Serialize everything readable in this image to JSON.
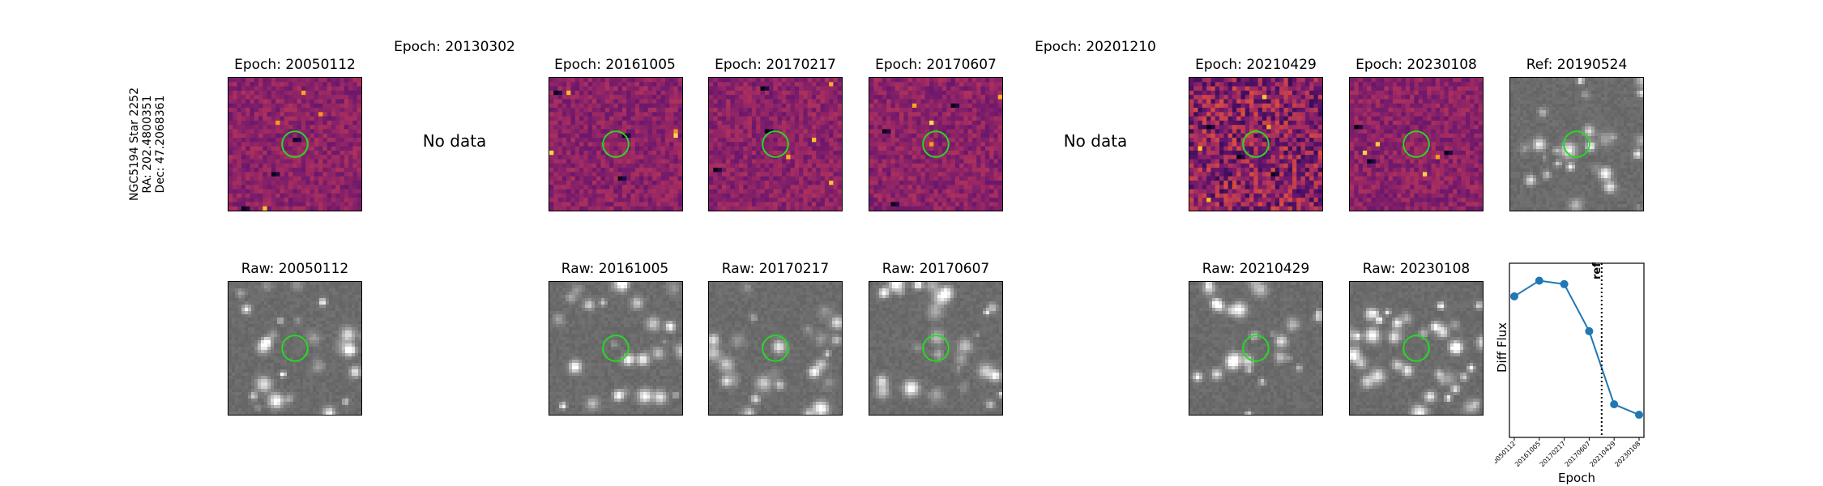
{
  "row_label": {
    "line1": "NGC5194 Star 2252",
    "line2": "RA: 202.4800351",
    "line3": "Dec: 47.2068361"
  },
  "top_row": [
    {
      "title": "Epoch: 20050112",
      "status": "image",
      "colormap": "magma"
    },
    {
      "title": "Epoch: 20130302",
      "status": "No data"
    },
    {
      "title": "Epoch: 20161005",
      "status": "image",
      "colormap": "magma"
    },
    {
      "title": "Epoch: 20170217",
      "status": "image",
      "colormap": "magma"
    },
    {
      "title": "Epoch: 20170607",
      "status": "image",
      "colormap": "magma"
    },
    {
      "title": "Epoch: 20201210",
      "status": "No data"
    },
    {
      "title": "Epoch: 20210429",
      "status": "image",
      "colormap": "magma"
    },
    {
      "title": "Epoch: 20230108",
      "status": "image",
      "colormap": "magma"
    },
    {
      "title": "Ref: 20190524",
      "status": "image",
      "colormap": "gray"
    }
  ],
  "bottom_row": [
    {
      "title": "Raw: 20050112"
    },
    {
      "title": "Raw: 20161005"
    },
    {
      "title": "Raw: 20170217"
    },
    {
      "title": "Raw: 20170607"
    },
    {
      "title": "Raw: 20210429"
    },
    {
      "title": "Raw: 20230108"
    }
  ],
  "marker_color": "#22dd22",
  "chart_data": {
    "type": "line",
    "x": [
      "20050112",
      "20161005",
      "20170217",
      "20170607",
      "20210429",
      "20230108"
    ],
    "series": [
      {
        "values": [
          0.81,
          0.9,
          0.88,
          0.61,
          0.19,
          0.13
        ],
        "color": "#1f77b4"
      }
    ],
    "reference_line": {
      "label": "ref",
      "between": [
        "20170607",
        "20210429"
      ],
      "style": "dotted"
    },
    "xlabel": "Epoch",
    "ylabel": "Diff Flux",
    "ylim": [
      0,
      1
    ],
    "grid": false
  }
}
